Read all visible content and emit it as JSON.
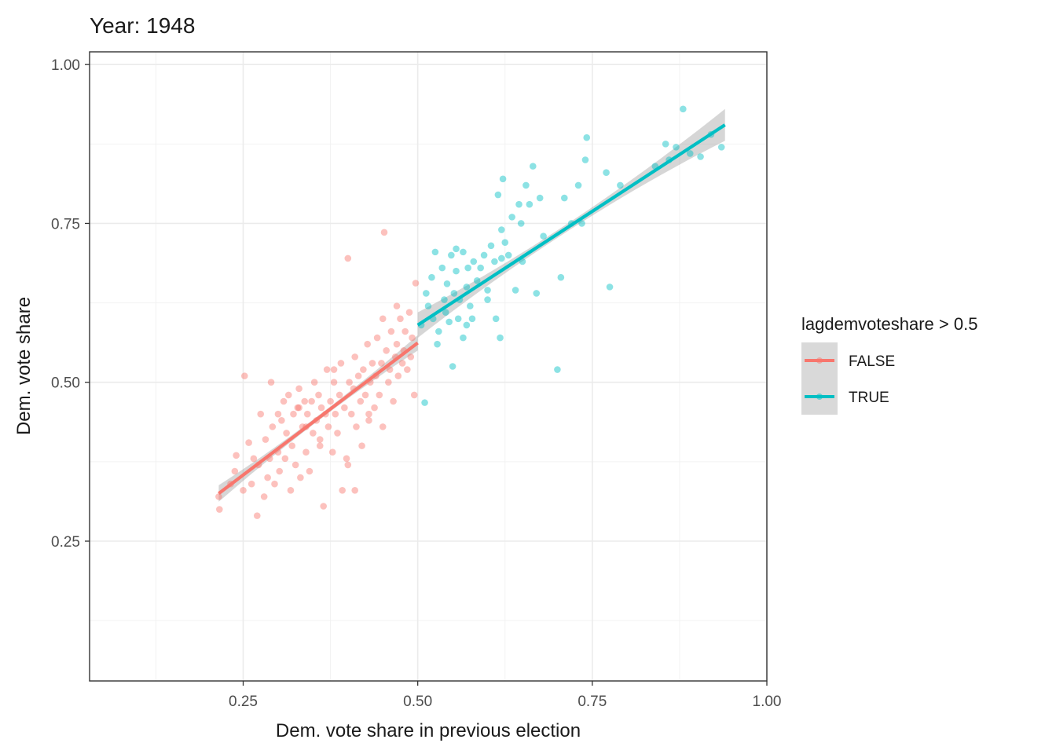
{
  "chart_data": {
    "type": "scatter",
    "title": "Year: 1948",
    "xlabel": "Dem. vote share in previous election",
    "ylabel": "Dem. vote share",
    "xlim": [
      0.03,
      1.0
    ],
    "ylim": [
      0.03,
      1.02
    ],
    "x_ticks": [
      0.25,
      0.5,
      0.75,
      1.0
    ],
    "x_tick_labels": [
      "0.25",
      "0.50",
      "0.75",
      "1.00"
    ],
    "y_ticks": [
      0.25,
      0.5,
      0.75,
      1.0
    ],
    "y_tick_labels": [
      "0.25",
      "0.50",
      "0.75",
      "1.00"
    ],
    "grid": true,
    "legend": {
      "title": "lagdemvoteshare > 0.5",
      "position": "right"
    },
    "series": [
      {
        "name": "FALSE",
        "color": "#F8766D",
        "fit": {
          "x": [
            0.215,
            0.5
          ],
          "y": [
            0.325,
            0.562
          ],
          "ci_halfwidth": [
            0.013,
            0.004,
            0.012
          ]
        },
        "points": [
          [
            0.215,
            0.32
          ],
          [
            0.216,
            0.3
          ],
          [
            0.232,
            0.34
          ],
          [
            0.238,
            0.36
          ],
          [
            0.24,
            0.385
          ],
          [
            0.25,
            0.33
          ],
          [
            0.252,
            0.51
          ],
          [
            0.258,
            0.405
          ],
          [
            0.262,
            0.34
          ],
          [
            0.265,
            0.38
          ],
          [
            0.27,
            0.29
          ],
          [
            0.272,
            0.37
          ],
          [
            0.275,
            0.45
          ],
          [
            0.28,
            0.32
          ],
          [
            0.282,
            0.41
          ],
          [
            0.285,
            0.35
          ],
          [
            0.288,
            0.38
          ],
          [
            0.29,
            0.5
          ],
          [
            0.292,
            0.43
          ],
          [
            0.295,
            0.34
          ],
          [
            0.3,
            0.39
          ],
          [
            0.302,
            0.36
          ],
          [
            0.305,
            0.44
          ],
          [
            0.308,
            0.47
          ],
          [
            0.31,
            0.38
          ],
          [
            0.312,
            0.42
          ],
          [
            0.315,
            0.48
          ],
          [
            0.318,
            0.33
          ],
          [
            0.32,
            0.4
          ],
          [
            0.322,
            0.45
          ],
          [
            0.325,
            0.37
          ],
          [
            0.328,
            0.46
          ],
          [
            0.33,
            0.49
          ],
          [
            0.332,
            0.35
          ],
          [
            0.335,
            0.43
          ],
          [
            0.338,
            0.47
          ],
          [
            0.34,
            0.39
          ],
          [
            0.342,
            0.45
          ],
          [
            0.345,
            0.36
          ],
          [
            0.348,
            0.47
          ],
          [
            0.35,
            0.42
          ],
          [
            0.352,
            0.5
          ],
          [
            0.355,
            0.44
          ],
          [
            0.358,
            0.48
          ],
          [
            0.36,
            0.4
          ],
          [
            0.362,
            0.46
          ],
          [
            0.365,
            0.305
          ],
          [
            0.368,
            0.45
          ],
          [
            0.37,
            0.52
          ],
          [
            0.372,
            0.43
          ],
          [
            0.375,
            0.47
          ],
          [
            0.378,
            0.39
          ],
          [
            0.38,
            0.5
          ],
          [
            0.382,
            0.45
          ],
          [
            0.385,
            0.42
          ],
          [
            0.388,
            0.48
          ],
          [
            0.39,
            0.53
          ],
          [
            0.392,
            0.33
          ],
          [
            0.395,
            0.46
          ],
          [
            0.398,
            0.38
          ],
          [
            0.4,
            0.695
          ],
          [
            0.402,
            0.5
          ],
          [
            0.405,
            0.45
          ],
          [
            0.408,
            0.49
          ],
          [
            0.41,
            0.54
          ],
          [
            0.412,
            0.43
          ],
          [
            0.415,
            0.51
          ],
          [
            0.418,
            0.47
          ],
          [
            0.42,
            0.4
          ],
          [
            0.422,
            0.52
          ],
          [
            0.425,
            0.48
          ],
          [
            0.428,
            0.56
          ],
          [
            0.43,
            0.45
          ],
          [
            0.432,
            0.5
          ],
          [
            0.435,
            0.53
          ],
          [
            0.438,
            0.46
          ],
          [
            0.44,
            0.51
          ],
          [
            0.442,
            0.57
          ],
          [
            0.445,
            0.48
          ],
          [
            0.448,
            0.53
          ],
          [
            0.45,
            0.43
          ],
          [
            0.452,
            0.736
          ],
          [
            0.455,
            0.55
          ],
          [
            0.458,
            0.5
          ],
          [
            0.46,
            0.52
          ],
          [
            0.462,
            0.58
          ],
          [
            0.465,
            0.47
          ],
          [
            0.468,
            0.54
          ],
          [
            0.47,
            0.56
          ],
          [
            0.472,
            0.51
          ],
          [
            0.475,
            0.6
          ],
          [
            0.478,
            0.53
          ],
          [
            0.48,
            0.55
          ],
          [
            0.482,
            0.58
          ],
          [
            0.485,
            0.52
          ],
          [
            0.488,
            0.61
          ],
          [
            0.49,
            0.54
          ],
          [
            0.492,
            0.57
          ],
          [
            0.495,
            0.48
          ],
          [
            0.497,
            0.656
          ],
          [
            0.4,
            0.37
          ],
          [
            0.43,
            0.44
          ],
          [
            0.36,
            0.41
          ],
          [
            0.33,
            0.46
          ],
          [
            0.3,
            0.45
          ],
          [
            0.45,
            0.6
          ],
          [
            0.47,
            0.62
          ],
          [
            0.38,
            0.52
          ],
          [
            0.34,
            0.43
          ],
          [
            0.41,
            0.33
          ]
        ]
      },
      {
        "name": "TRUE",
        "color": "#00BFC4",
        "fit": {
          "x": [
            0.5,
            0.94
          ],
          "y": [
            0.59,
            0.905
          ],
          "ci_halfwidth": [
            0.02,
            0.006,
            0.025
          ]
        },
        "points": [
          [
            0.505,
            0.59
          ],
          [
            0.51,
            0.468
          ],
          [
            0.512,
            0.64
          ],
          [
            0.515,
            0.62
          ],
          [
            0.52,
            0.665
          ],
          [
            0.522,
            0.6
          ],
          [
            0.525,
            0.705
          ],
          [
            0.528,
            0.56
          ],
          [
            0.53,
            0.58
          ],
          [
            0.535,
            0.68
          ],
          [
            0.538,
            0.63
          ],
          [
            0.54,
            0.61
          ],
          [
            0.542,
            0.655
          ],
          [
            0.545,
            0.595
          ],
          [
            0.548,
            0.7
          ],
          [
            0.55,
            0.525
          ],
          [
            0.552,
            0.64
          ],
          [
            0.555,
            0.675
          ],
          [
            0.558,
            0.6
          ],
          [
            0.56,
            0.63
          ],
          [
            0.565,
            0.57
          ],
          [
            0.57,
            0.65
          ],
          [
            0.572,
            0.68
          ],
          [
            0.575,
            0.62
          ],
          [
            0.578,
            0.6
          ],
          [
            0.58,
            0.69
          ],
          [
            0.585,
            0.66
          ],
          [
            0.59,
            0.68
          ],
          [
            0.595,
            0.7
          ],
          [
            0.6,
            0.63
          ],
          [
            0.605,
            0.715
          ],
          [
            0.61,
            0.69
          ],
          [
            0.612,
            0.6
          ],
          [
            0.615,
            0.795
          ],
          [
            0.618,
            0.57
          ],
          [
            0.62,
            0.74
          ],
          [
            0.622,
            0.82
          ],
          [
            0.625,
            0.72
          ],
          [
            0.63,
            0.7
          ],
          [
            0.635,
            0.76
          ],
          [
            0.64,
            0.645
          ],
          [
            0.645,
            0.78
          ],
          [
            0.648,
            0.75
          ],
          [
            0.65,
            0.69
          ],
          [
            0.655,
            0.81
          ],
          [
            0.66,
            0.78
          ],
          [
            0.665,
            0.84
          ],
          [
            0.67,
            0.64
          ],
          [
            0.675,
            0.79
          ],
          [
            0.68,
            0.73
          ],
          [
            0.7,
            0.52
          ],
          [
            0.705,
            0.665
          ],
          [
            0.71,
            0.79
          ],
          [
            0.72,
            0.75
          ],
          [
            0.73,
            0.81
          ],
          [
            0.735,
            0.75
          ],
          [
            0.74,
            0.85
          ],
          [
            0.742,
            0.885
          ],
          [
            0.77,
            0.83
          ],
          [
            0.775,
            0.65
          ],
          [
            0.79,
            0.81
          ],
          [
            0.84,
            0.84
          ],
          [
            0.855,
            0.875
          ],
          [
            0.86,
            0.85
          ],
          [
            0.87,
            0.87
          ],
          [
            0.88,
            0.93
          ],
          [
            0.89,
            0.86
          ],
          [
            0.905,
            0.855
          ],
          [
            0.92,
            0.89
          ],
          [
            0.935,
            0.87
          ],
          [
            0.555,
            0.71
          ],
          [
            0.565,
            0.705
          ],
          [
            0.6,
            0.645
          ],
          [
            0.62,
            0.695
          ],
          [
            0.57,
            0.59
          ]
        ]
      }
    ]
  }
}
